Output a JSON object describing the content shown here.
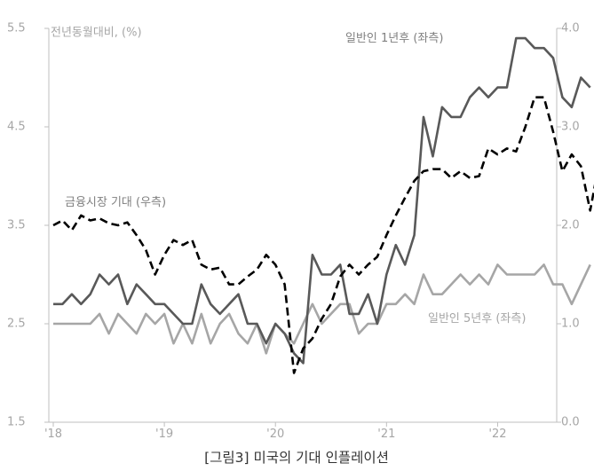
{
  "caption": "[그림3] 미국의 기대 인플레이션",
  "chart_data": {
    "type": "line",
    "ylabel_left": "전년동월대비, (%)",
    "y_left": {
      "min": 1.5,
      "max": 5.5,
      "ticks": [
        1.5,
        2.5,
        3.5,
        4.5,
        5.5
      ],
      "tick_labels": [
        "1.5",
        "2.5",
        "3.5",
        "4.5",
        "5.5"
      ]
    },
    "y_right": {
      "min": 0.0,
      "max": 4.0,
      "ticks": [
        0.0,
        1.0,
        2.0,
        3.0,
        4.0
      ],
      "tick_labels": [
        "0.0",
        "1.0",
        "2.0",
        "3.0",
        "4.0"
      ]
    },
    "x_start": "2018-01",
    "x_end": "2022-07",
    "x_ticks": [
      {
        "date": "2018-01",
        "label": "'18"
      },
      {
        "date": "2019-01",
        "label": "'19"
      },
      {
        "date": "2020-01",
        "label": "'20"
      },
      {
        "date": "2021-01",
        "label": "'21"
      },
      {
        "date": "2022-01",
        "label": "'22"
      }
    ],
    "grid": false,
    "series": [
      {
        "name": "일반인 1년후 (좌측)",
        "axis": "left",
        "color": "#595959",
        "dash": false,
        "start": "2018-01",
        "values": [
          2.7,
          2.7,
          2.8,
          2.7,
          2.8,
          3.0,
          2.9,
          3.0,
          2.7,
          2.9,
          2.8,
          2.7,
          2.7,
          2.6,
          2.5,
          2.5,
          2.9,
          2.7,
          2.6,
          2.7,
          2.8,
          2.5,
          2.5,
          2.3,
          2.5,
          2.4,
          2.2,
          2.1,
          3.2,
          3.0,
          3.0,
          3.1,
          2.6,
          2.6,
          2.8,
          2.5,
          3.0,
          3.3,
          3.1,
          3.4,
          4.6,
          4.2,
          4.7,
          4.6,
          4.6,
          4.8,
          4.9,
          4.8,
          4.9,
          4.9,
          5.4,
          5.4,
          5.3,
          5.3,
          5.2,
          4.8,
          4.7,
          5.0,
          4.9
        ]
      },
      {
        "name": "일반인 5년후 (좌측)",
        "axis": "left",
        "color": "#a6a6a6",
        "dash": false,
        "start": "2018-01",
        "values": [
          2.5,
          2.5,
          2.5,
          2.5,
          2.5,
          2.6,
          2.4,
          2.6,
          2.5,
          2.4,
          2.6,
          2.5,
          2.6,
          2.3,
          2.5,
          2.3,
          2.6,
          2.3,
          2.5,
          2.6,
          2.4,
          2.3,
          2.5,
          2.2,
          2.5,
          2.4,
          2.3,
          2.5,
          2.7,
          2.5,
          2.6,
          2.7,
          2.7,
          2.4,
          2.5,
          2.5,
          2.7,
          2.7,
          2.8,
          2.7,
          3.0,
          2.8,
          2.8,
          2.9,
          3.0,
          2.9,
          3.0,
          2.9,
          3.1,
          3.0,
          3.0,
          3.0,
          3.0,
          3.1,
          2.9,
          2.9,
          2.7,
          2.9,
          3.1
        ]
      },
      {
        "name": "금융시장 기대 (우측)",
        "axis": "right",
        "color": "#000000",
        "dash": true,
        "start": "2018-01",
        "values": [
          2.0,
          2.05,
          1.95,
          2.1,
          2.05,
          2.07,
          2.02,
          2.0,
          2.03,
          1.9,
          1.75,
          1.5,
          1.7,
          1.85,
          1.8,
          1.85,
          1.6,
          1.55,
          1.57,
          1.4,
          1.4,
          1.48,
          1.55,
          1.7,
          1.6,
          1.4,
          0.5,
          0.75,
          0.85,
          1.05,
          1.2,
          1.48,
          1.6,
          1.5,
          1.6,
          1.68,
          1.9,
          2.1,
          2.28,
          2.45,
          2.55,
          2.57,
          2.57,
          2.48,
          2.55,
          2.48,
          2.5,
          2.78,
          2.72,
          2.78,
          2.75,
          3.0,
          3.3,
          3.3,
          2.95,
          2.55,
          2.72,
          2.6,
          2.15,
          2.65,
          2.4
        ]
      }
    ],
    "annotations": [
      {
        "text": "일반인 1년후 (좌측)",
        "color": "#808080"
      },
      {
        "text": "금융시장 기대 (우측)",
        "color": "#808080"
      },
      {
        "text": "일반인 5년후 (좌측)",
        "color": "#a6a6a6"
      }
    ]
  }
}
